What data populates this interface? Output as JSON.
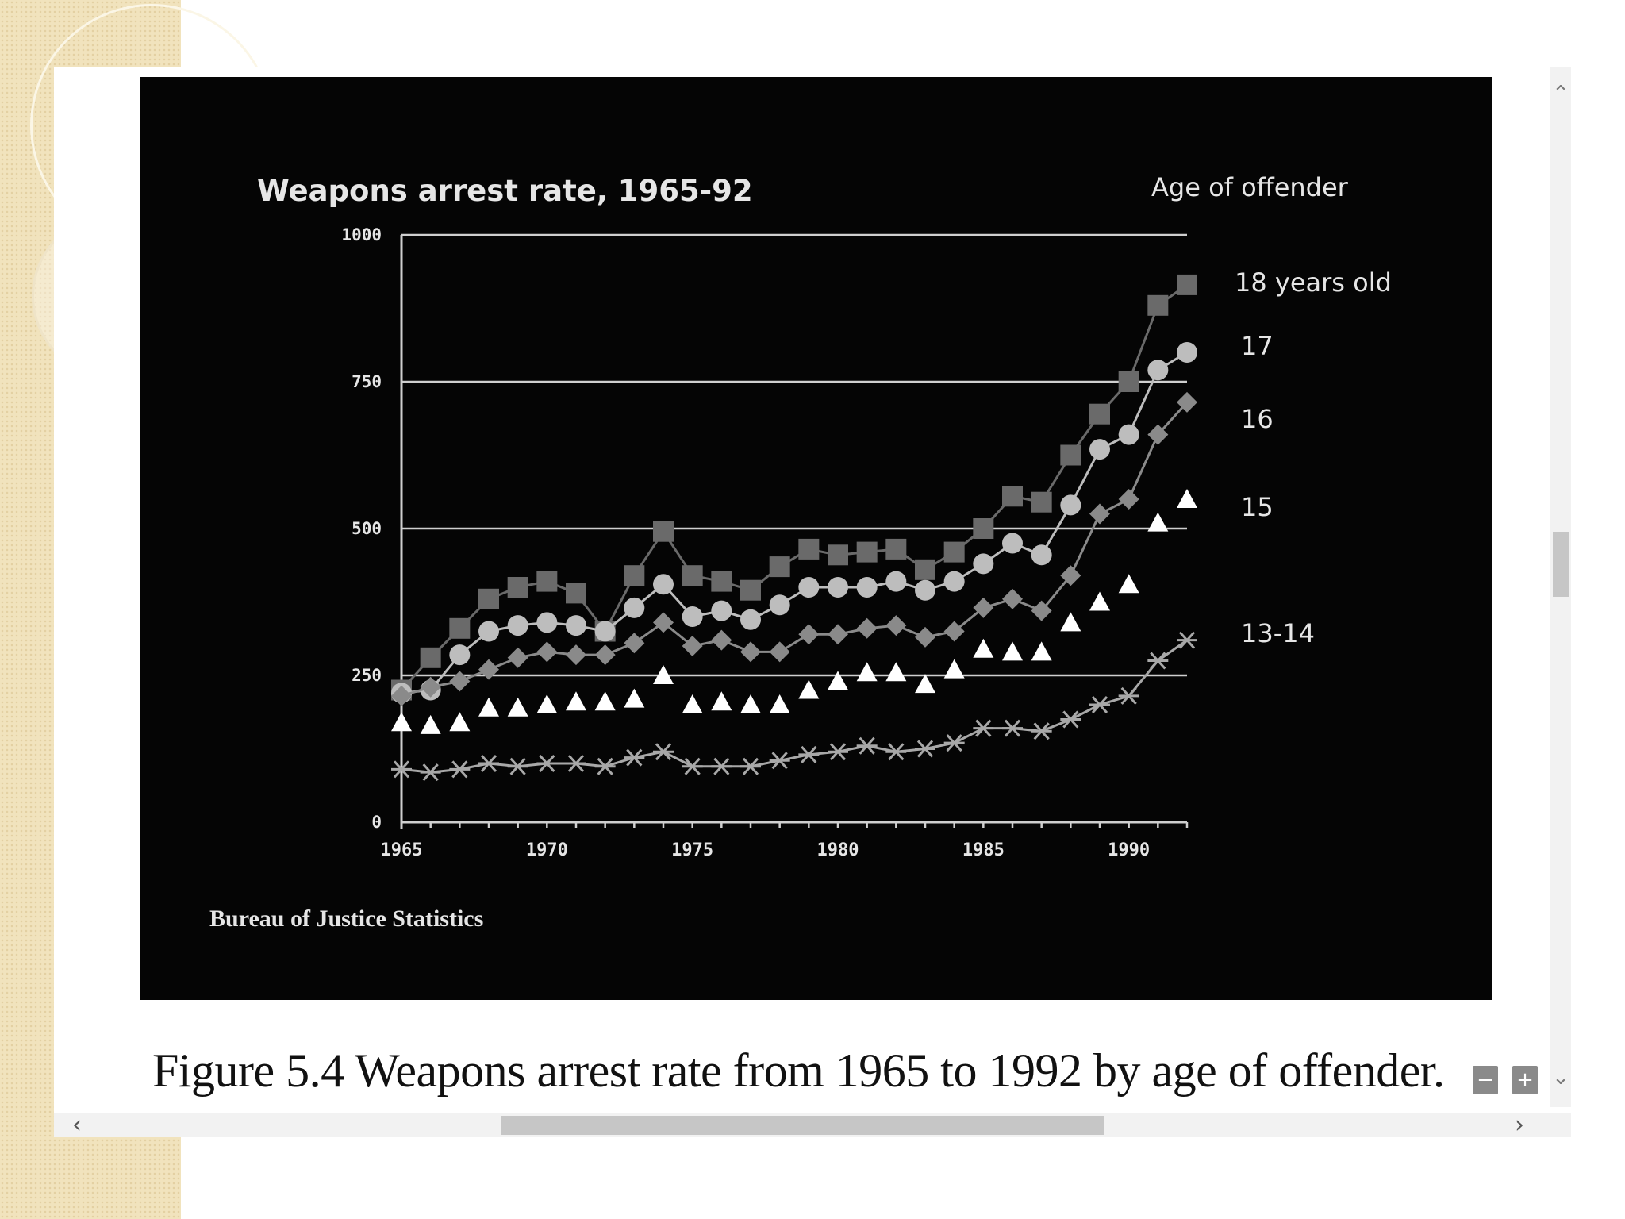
{
  "caption": "Figure 5.4  Weapons arrest rate from 1965 to 1992 by age of offender.",
  "controls": {
    "zoom_out_label": "−",
    "zoom_in_label": "+",
    "scroll_up_icon": "chevron-up-icon",
    "scroll_down_icon": "chevron-down-icon",
    "scroll_left_icon": "chevron-left-icon",
    "scroll_right_icon": "chevron-right-icon"
  },
  "colors": {
    "background": "#050505",
    "text": "#e6e6e6",
    "gridline": "#cfcfcf",
    "series_18": "#6a6a6a",
    "series_17": "#bdbdbd",
    "series_16": "#8a8a8a",
    "series_15": "#ffffff",
    "series_13_14": "#a8a8a8"
  },
  "chart_data": {
    "type": "line",
    "title": "Weapons arrest rate, 1965-92",
    "legend_title": "Age of offender",
    "source": "Bureau of Justice Statistics",
    "xlabel": "",
    "ylabel": "",
    "xlim": [
      1965,
      1992
    ],
    "ylim": [
      0,
      1000
    ],
    "yticks": [
      0,
      250,
      500,
      750,
      1000
    ],
    "ytick_labels": [
      "0",
      "250",
      "500",
      "750",
      "1000"
    ],
    "xticks": [
      1965,
      1970,
      1975,
      1980,
      1985,
      1990
    ],
    "xtick_labels": [
      "1965",
      "1970",
      "1975",
      "1980",
      "1985",
      "1990"
    ],
    "grid": "horizontal",
    "x": [
      1965,
      1966,
      1967,
      1968,
      1969,
      1970,
      1971,
      1972,
      1973,
      1974,
      1975,
      1976,
      1977,
      1978,
      1979,
      1980,
      1981,
      1982,
      1983,
      1984,
      1985,
      1986,
      1987,
      1988,
      1989,
      1990,
      1991,
      1992
    ],
    "series": [
      {
        "name": "18 years old",
        "marker": "square",
        "values": [
          225,
          280,
          330,
          380,
          400,
          410,
          390,
          325,
          420,
          495,
          420,
          410,
          395,
          435,
          465,
          455,
          460,
          465,
          430,
          460,
          500,
          555,
          545,
          625,
          695,
          750,
          880,
          915
        ]
      },
      {
        "name": "17",
        "marker": "circle",
        "values": [
          220,
          225,
          285,
          325,
          335,
          340,
          335,
          325,
          365,
          405,
          350,
          360,
          345,
          370,
          400,
          400,
          400,
          410,
          395,
          410,
          440,
          475,
          455,
          540,
          635,
          660,
          770,
          800
        ]
      },
      {
        "name": "16",
        "marker": "diamond",
        "values": [
          215,
          230,
          240,
          260,
          280,
          290,
          285,
          285,
          305,
          340,
          300,
          310,
          290,
          290,
          320,
          320,
          330,
          335,
          315,
          325,
          365,
          380,
          360,
          420,
          525,
          550,
          660,
          715
        ]
      },
      {
        "name": "15",
        "marker": "triangle",
        "values": [
          170,
          165,
          170,
          195,
          195,
          200,
          205,
          205,
          210,
          250,
          200,
          205,
          200,
          200,
          225,
          240,
          255,
          255,
          235,
          260,
          295,
          290,
          290,
          340,
          375,
          405,
          510,
          550
        ]
      },
      {
        "name": "13-14",
        "marker": "asterisk",
        "values": [
          90,
          85,
          90,
          100,
          95,
          100,
          100,
          95,
          110,
          120,
          95,
          95,
          95,
          105,
          115,
          120,
          130,
          120,
          125,
          135,
          160,
          160,
          155,
          175,
          200,
          215,
          275,
          310
        ]
      }
    ]
  }
}
